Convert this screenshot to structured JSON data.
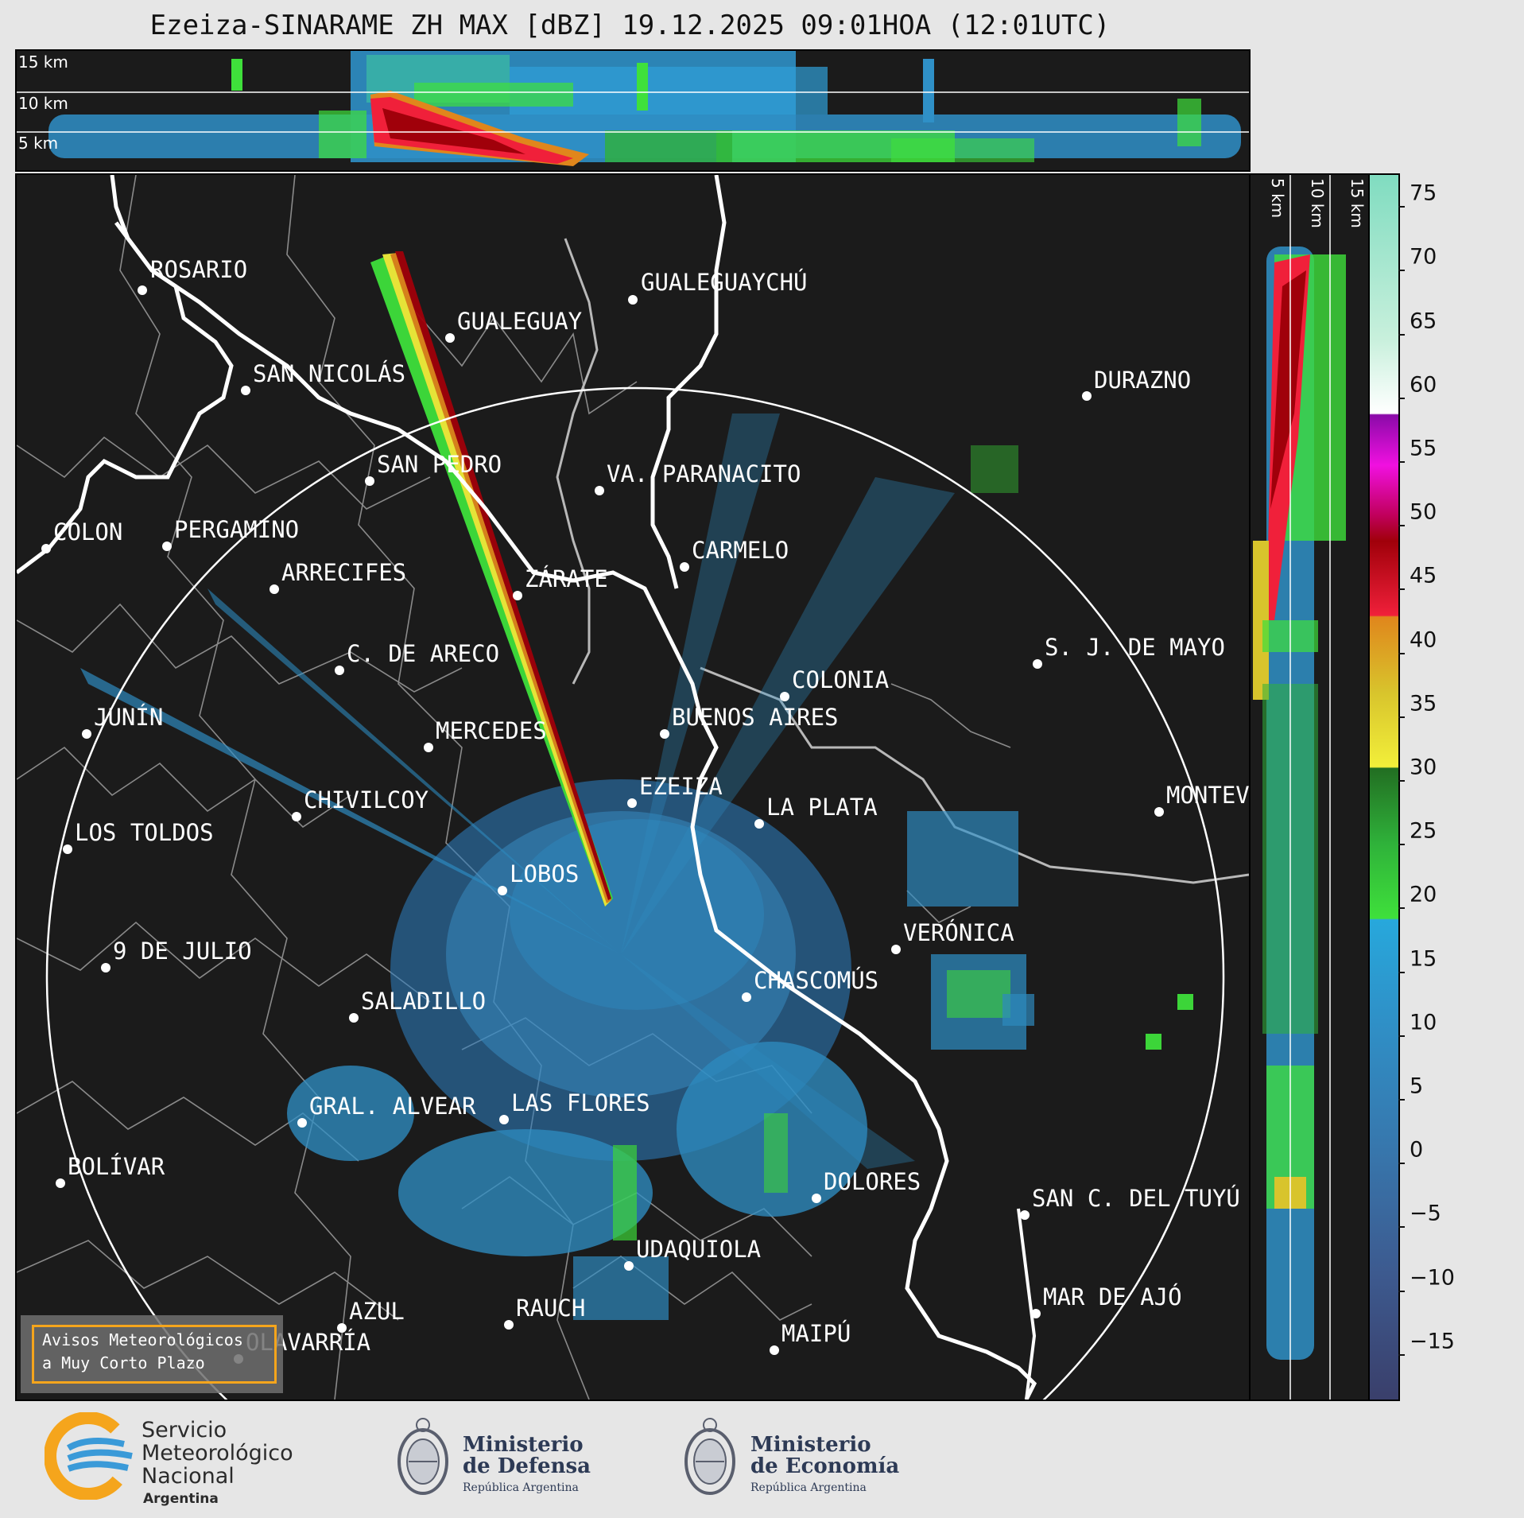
{
  "title": "Ezeiza-SINARAME ZH MAX [dBZ] 19.12.2025 09:01HOA (12:01UTC)",
  "height_labels": [
    "15 km",
    "10 km",
    "5 km"
  ],
  "colorbar": {
    "ticks": [
      "75",
      "70",
      "65",
      "60",
      "55",
      "50",
      "45",
      "40",
      "35",
      "30",
      "25",
      "20",
      "15",
      "10",
      "5",
      "0",
      "−5",
      "−10",
      "−15"
    ],
    "stops": [
      {
        "dbz": -20,
        "color": "#3a3f6b"
      },
      {
        "dbz": -10,
        "color": "#3d5a8f"
      },
      {
        "dbz": 0,
        "color": "#3777ad"
      },
      {
        "dbz": 10,
        "color": "#2f90c7"
      },
      {
        "dbz": 18,
        "color": "#27a8dc"
      },
      {
        "dbz": 18.1,
        "color": "#3fe03b"
      },
      {
        "dbz": 24,
        "color": "#2fb23a"
      },
      {
        "dbz": 30,
        "color": "#226e22"
      },
      {
        "dbz": 30.1,
        "color": "#f2ef3a"
      },
      {
        "dbz": 36,
        "color": "#d8c42c"
      },
      {
        "dbz": 42,
        "color": "#e0861c"
      },
      {
        "dbz": 42.1,
        "color": "#f0203a"
      },
      {
        "dbz": 48,
        "color": "#a0000a"
      },
      {
        "dbz": 50,
        "color": "#c0005a"
      },
      {
        "dbz": 54,
        "color": "#f010e0"
      },
      {
        "dbz": 58,
        "color": "#8a0aa8"
      },
      {
        "dbz": 58.1,
        "color": "#ffffff"
      },
      {
        "dbz": 64,
        "color": "#c8f0dc"
      },
      {
        "dbz": 77,
        "color": "#80dcc0"
      }
    ]
  },
  "cities": [
    {
      "name": "ROSARIO"
    },
    {
      "name": "GUALEGUAY"
    },
    {
      "name": "GUALEGUAYCHÚ"
    },
    {
      "name": "SAN NICOLÁS"
    },
    {
      "name": "DURAZNO"
    },
    {
      "name": "SAN PEDRO"
    },
    {
      "name": "VA. PARANACITO"
    },
    {
      "name": "COLON"
    },
    {
      "name": "PERGAMINO"
    },
    {
      "name": "CARMELO"
    },
    {
      "name": "ARRECIFES"
    },
    {
      "name": "ZÁRATE"
    },
    {
      "name": "S. J. DE MAYO"
    },
    {
      "name": "C. DE ARECO"
    },
    {
      "name": "COLONIA"
    },
    {
      "name": "JUNÍN"
    },
    {
      "name": "BUENOS AIRES"
    },
    {
      "name": "MERCEDES"
    },
    {
      "name": "MONTEVIDEO"
    },
    {
      "name": "EZEIZA"
    },
    {
      "name": "CHIVILCOY"
    },
    {
      "name": "LA PLATA"
    },
    {
      "name": "LOS TOLDOS"
    },
    {
      "name": "LOBOS"
    },
    {
      "name": "VERÓNICA"
    },
    {
      "name": "9 DE JULIO"
    },
    {
      "name": "CHASCOMÚS"
    },
    {
      "name": "SALADILLO"
    },
    {
      "name": "GRAL. ALVEAR"
    },
    {
      "name": "LAS FLORES"
    },
    {
      "name": "BOLÍVAR"
    },
    {
      "name": "DOLORES"
    },
    {
      "name": "SAN C. DEL TUYÚ"
    },
    {
      "name": "UDAQUIOLA"
    },
    {
      "name": "AZUL"
    },
    {
      "name": "MAR DE AJÓ"
    },
    {
      "name": "RAUCH"
    },
    {
      "name": "OLAVARRÍA"
    },
    {
      "name": "MAIPÚ"
    }
  ],
  "avisos": {
    "line1": "Avisos Meteorológicos",
    "line2": "a Muy Corto Plazo"
  },
  "logos": {
    "smn": {
      "line1": "Servicio",
      "line2": "Meteorológico",
      "line3": "Nacional",
      "line4": "Argentina"
    },
    "defensa": {
      "line1": "Ministerio",
      "line2": "de Defensa",
      "line3": "República Argentina"
    },
    "economia": {
      "line1": "Ministerio",
      "line2": "de Economía",
      "line3": "República Argentina"
    }
  }
}
